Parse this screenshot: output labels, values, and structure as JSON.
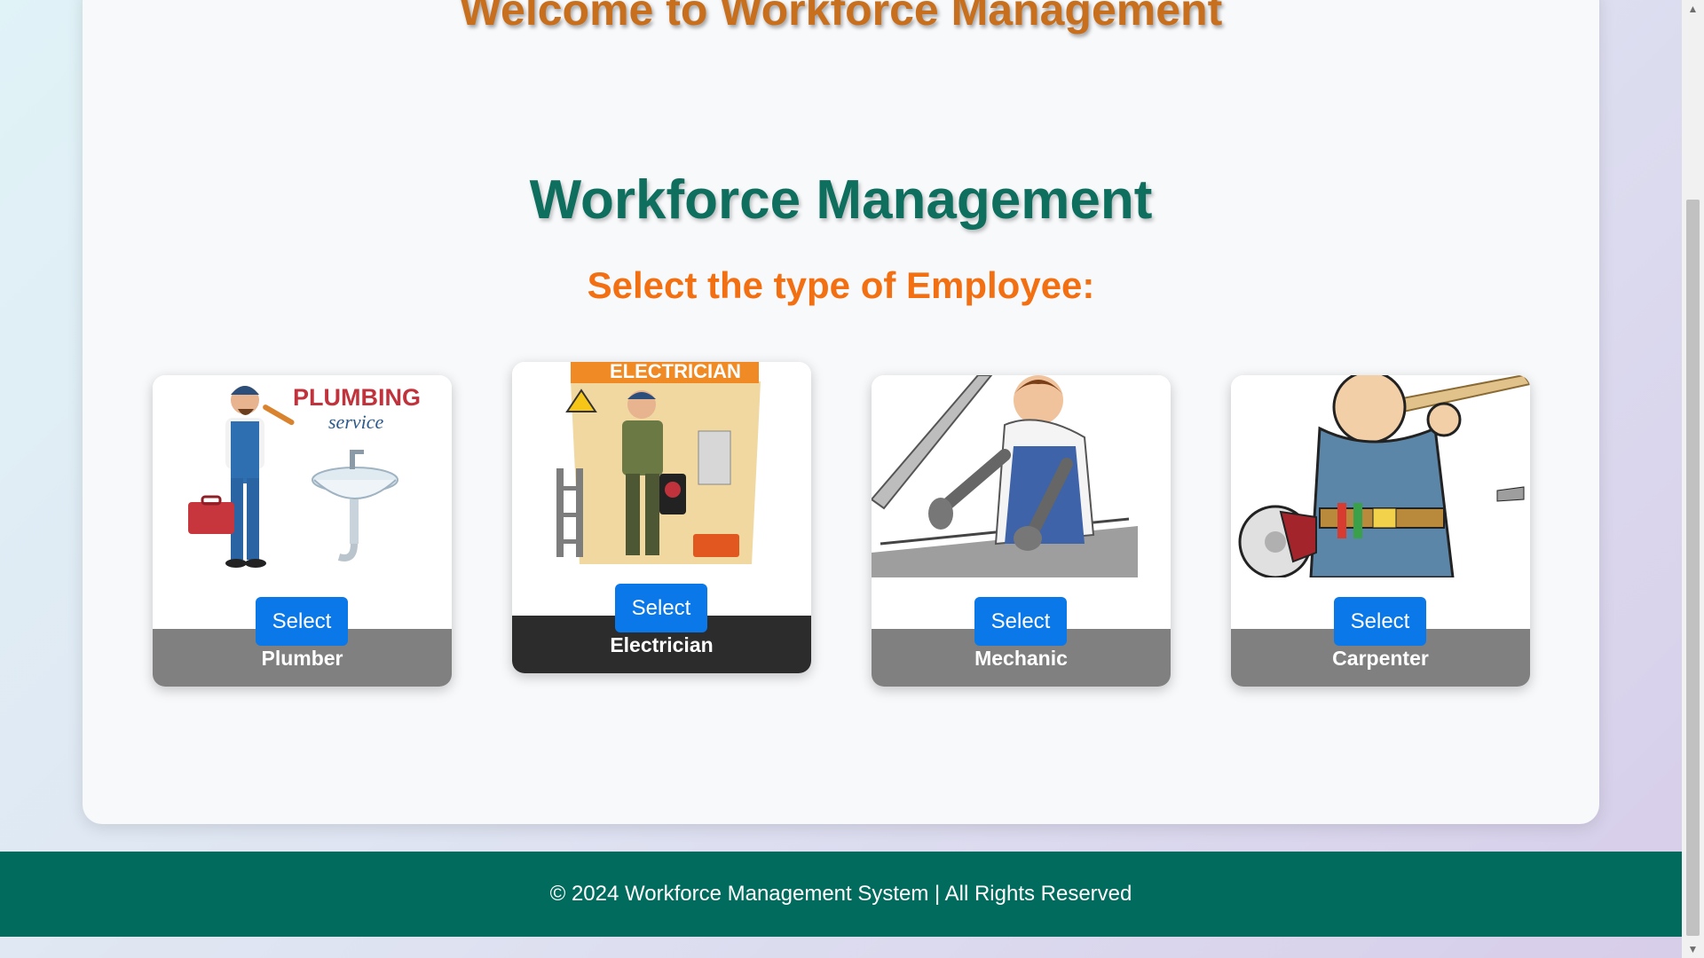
{
  "page": {
    "welcome_title": "Welcome to Workforce Management",
    "heading": "Workforce Management",
    "subheading": "Select the type of Employee:"
  },
  "cards": [
    {
      "label": "Plumber",
      "button": "Select",
      "image_text_1": "PLUMBING",
      "image_text_2": "service"
    },
    {
      "label": "Electrician",
      "button": "Select",
      "image_text_1": "ELECTRICIAN"
    },
    {
      "label": "Mechanic",
      "button": "Select"
    },
    {
      "label": "Carpenter",
      "button": "Select"
    }
  ],
  "footer": {
    "text": "© 2024 Workforce Management System | All Rights Reserved"
  },
  "colors": {
    "welcome": "#c86f1d",
    "heading": "#0e6f5f",
    "subheading": "#f26f12",
    "button": "#0a78e8",
    "footer": "#016b5d"
  },
  "icons": [
    "plumber-illustration",
    "electrician-illustration",
    "mechanic-illustration",
    "carpenter-illustration"
  ]
}
